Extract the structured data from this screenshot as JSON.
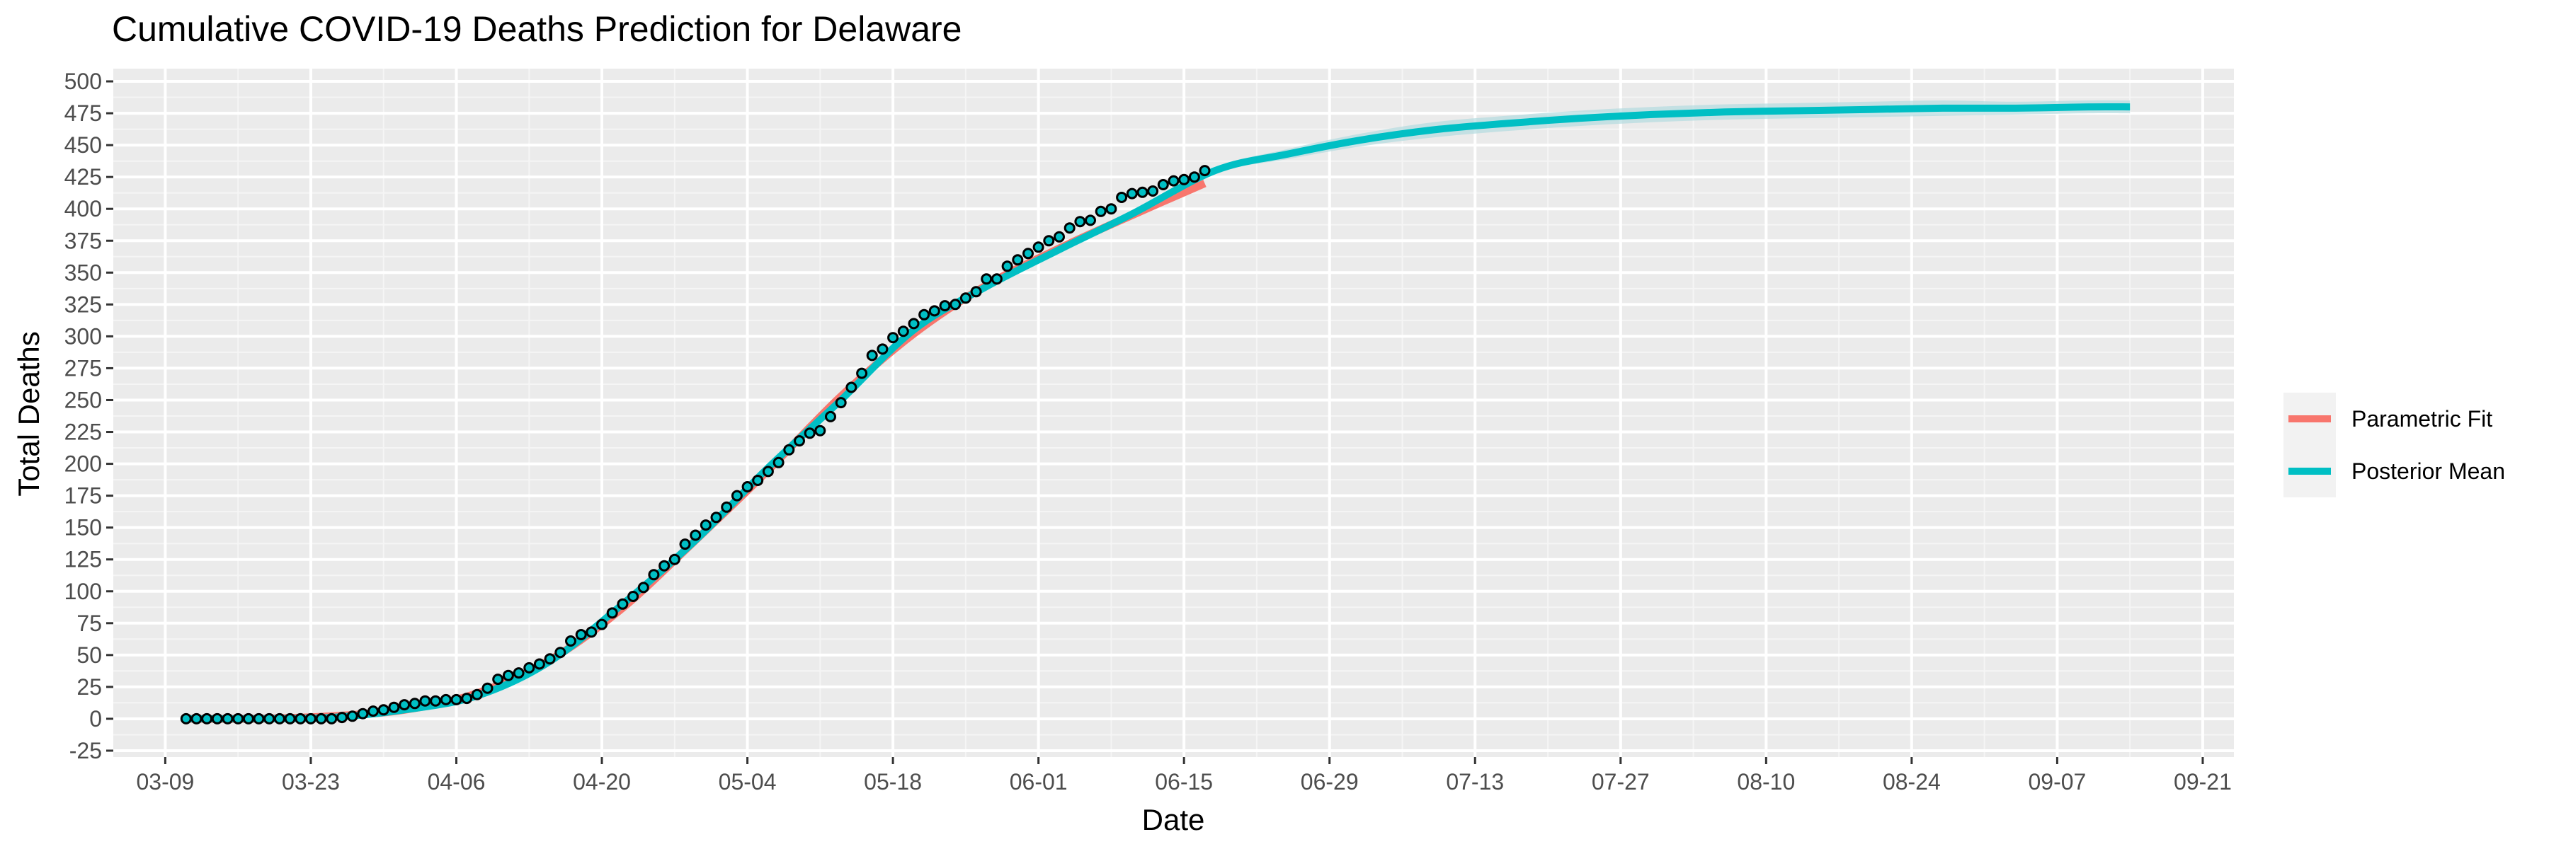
{
  "chart_data": {
    "type": "line",
    "title": "Cumulative COVID-19 Deaths Prediction for Delaware",
    "xlabel": "Date",
    "ylabel": "Total Deaths",
    "x_range": [
      "2020-03-04",
      "2020-09-24"
    ],
    "ylim": [
      -30,
      510
    ],
    "x_ticks": [
      "03-09",
      "03-23",
      "04-06",
      "04-20",
      "05-04",
      "05-18",
      "06-01",
      "06-15",
      "06-29",
      "07-13",
      "07-27",
      "08-10",
      "08-24",
      "09-07",
      "09-21"
    ],
    "y_ticks": [
      -25,
      0,
      25,
      50,
      75,
      100,
      125,
      150,
      175,
      200,
      225,
      250,
      275,
      300,
      325,
      350,
      375,
      400,
      425,
      450,
      475,
      500
    ],
    "grid": true,
    "legend": {
      "position": "right",
      "entries": [
        {
          "name": "Parametric Fit",
          "color": "#F8766D"
        },
        {
          "name": "Posterior Mean",
          "color": "#00BFC4"
        }
      ]
    },
    "observed": {
      "start_date": "2020-03-11",
      "values": [
        0,
        0,
        0,
        0,
        0,
        0,
        0,
        0,
        0,
        0,
        0,
        0,
        0,
        0,
        0,
        1,
        2,
        4,
        6,
        7,
        9,
        11,
        12,
        14,
        14,
        15,
        15,
        16,
        19,
        24,
        31,
        34,
        36,
        40,
        43,
        47,
        52,
        61,
        66,
        68,
        74,
        83,
        90,
        96,
        103,
        113,
        120,
        125,
        137,
        144,
        152,
        158,
        166,
        175,
        182,
        187,
        194,
        201,
        211,
        218,
        224,
        226,
        237,
        248,
        260,
        271,
        285,
        290,
        299,
        304,
        310,
        317,
        320,
        324,
        325,
        330,
        335,
        345,
        345,
        355,
        360,
        365,
        370,
        375,
        378,
        385,
        390,
        391,
        398,
        400,
        409,
        412,
        413,
        414,
        419,
        422,
        423,
        425,
        430
      ]
    },
    "series": [
      {
        "name": "Parametric Fit",
        "color": "#F8766D",
        "x": [
          "2020-03-11",
          "2020-03-18",
          "2020-03-25",
          "2020-04-01",
          "2020-04-08",
          "2020-04-15",
          "2020-04-22",
          "2020-04-29",
          "2020-05-06",
          "2020-05-13",
          "2020-05-20",
          "2020-05-27",
          "2020-06-03",
          "2020-06-10",
          "2020-06-17"
        ],
        "values": [
          0,
          0,
          2,
          7,
          20,
          46,
          87,
          140,
          195,
          253,
          302,
          340,
          369,
          395,
          420
        ]
      },
      {
        "name": "Posterior Mean",
        "color": "#00BFC4",
        "x": [
          "2020-03-11",
          "2020-03-18",
          "2020-03-25",
          "2020-04-01",
          "2020-04-08",
          "2020-04-15",
          "2020-04-22",
          "2020-04-29",
          "2020-05-06",
          "2020-05-13",
          "2020-05-20",
          "2020-05-27",
          "2020-06-03",
          "2020-06-10",
          "2020-06-18",
          "2020-06-25",
          "2020-07-02",
          "2020-07-09",
          "2020-07-16",
          "2020-07-23",
          "2020-07-30",
          "2020-08-06",
          "2020-08-13",
          "2020-08-20",
          "2020-08-27",
          "2020-09-03",
          "2020-09-10",
          "2020-09-14"
        ],
        "values": [
          0,
          0,
          1,
          7,
          18,
          45,
          90,
          140,
          197,
          250,
          305,
          339,
          368,
          396,
          430,
          443,
          454,
          462,
          467,
          471,
          474,
          476,
          477,
          478,
          479,
          479,
          480,
          480
        ],
        "band_halfwidth": [
          0,
          0,
          0,
          0,
          0,
          0,
          0,
          0,
          0,
          0,
          0,
          0,
          0,
          0,
          2,
          4,
          5,
          6,
          6,
          6,
          6,
          6,
          6,
          6,
          6,
          5,
          5,
          5
        ]
      }
    ]
  },
  "colors": {
    "panel": "#EBEBEB",
    "grid_major": "#FFFFFF",
    "grid_minor": "#F5F5F5",
    "point_fill": "#00BFC4",
    "point_stroke": "#000000",
    "band": "#B3DCE0"
  }
}
